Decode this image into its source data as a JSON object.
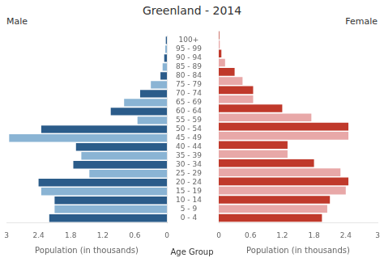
{
  "chart_data": {
    "type": "bar",
    "orientation": "horizontal",
    "title": "Greenland - 2014",
    "categories": [
      "0 - 4",
      "5 - 9",
      "10 - 14",
      "15 - 19",
      "20 - 24",
      "25 - 29",
      "30 - 34",
      "35 - 39",
      "40 - 44",
      "45 - 49",
      "50 - 54",
      "55 - 59",
      "60 - 64",
      "65 - 69",
      "70 - 74",
      "75 - 79",
      "80 - 84",
      "85 - 89",
      "90 - 94",
      "95 - 99",
      "100+"
    ],
    "series": [
      {
        "name": "Male",
        "colors": [
          "#2b5c8a",
          "#8ab4d4",
          "#2b5c8a",
          "#8ab4d4",
          "#2b5c8a",
          "#8ab4d4",
          "#2b5c8a",
          "#8ab4d4",
          "#2b5c8a",
          "#8ab4d4",
          "#2b5c8a",
          "#8ab4d4",
          "#2b5c8a",
          "#8ab4d4",
          "#2b5c8a",
          "#8ab4d4",
          "#2b5c8a",
          "#8ab4d4",
          "#2b5c8a",
          "#8ab4d4",
          "#2b5c8a"
        ],
        "values": [
          2.2,
          2.1,
          2.1,
          2.35,
          2.4,
          1.45,
          1.75,
          1.6,
          1.7,
          2.95,
          2.35,
          0.55,
          1.05,
          0.8,
          0.5,
          0.3,
          0.12,
          0.08,
          0.05,
          0.03,
          0.02
        ]
      },
      {
        "name": "Female",
        "colors": [
          "#c0392b",
          "#e8a8a8",
          "#c0392b",
          "#e8a8a8",
          "#c0392b",
          "#e8a8a8",
          "#c0392b",
          "#e8a8a8",
          "#c0392b",
          "#e8a8a8",
          "#c0392b",
          "#e8a8a8",
          "#c0392b",
          "#e8a8a8",
          "#c0392b",
          "#e8a8a8",
          "#c0392b",
          "#e8a8a8",
          "#c0392b",
          "#e8a8a8",
          "#c0392b"
        ],
        "values": [
          1.95,
          2.05,
          2.1,
          2.4,
          2.45,
          2.3,
          1.8,
          1.3,
          1.3,
          2.45,
          2.45,
          1.75,
          1.2,
          0.65,
          0.65,
          0.45,
          0.3,
          0.12,
          0.05,
          0.02,
          0.01
        ]
      }
    ],
    "xlabel": "Population (in thousands)",
    "ylabel": "Age Group",
    "xlim": [
      0,
      3.0
    ],
    "xticks": [
      0,
      0.6,
      1.2,
      1.8,
      2.4,
      3
    ],
    "grid": false
  }
}
